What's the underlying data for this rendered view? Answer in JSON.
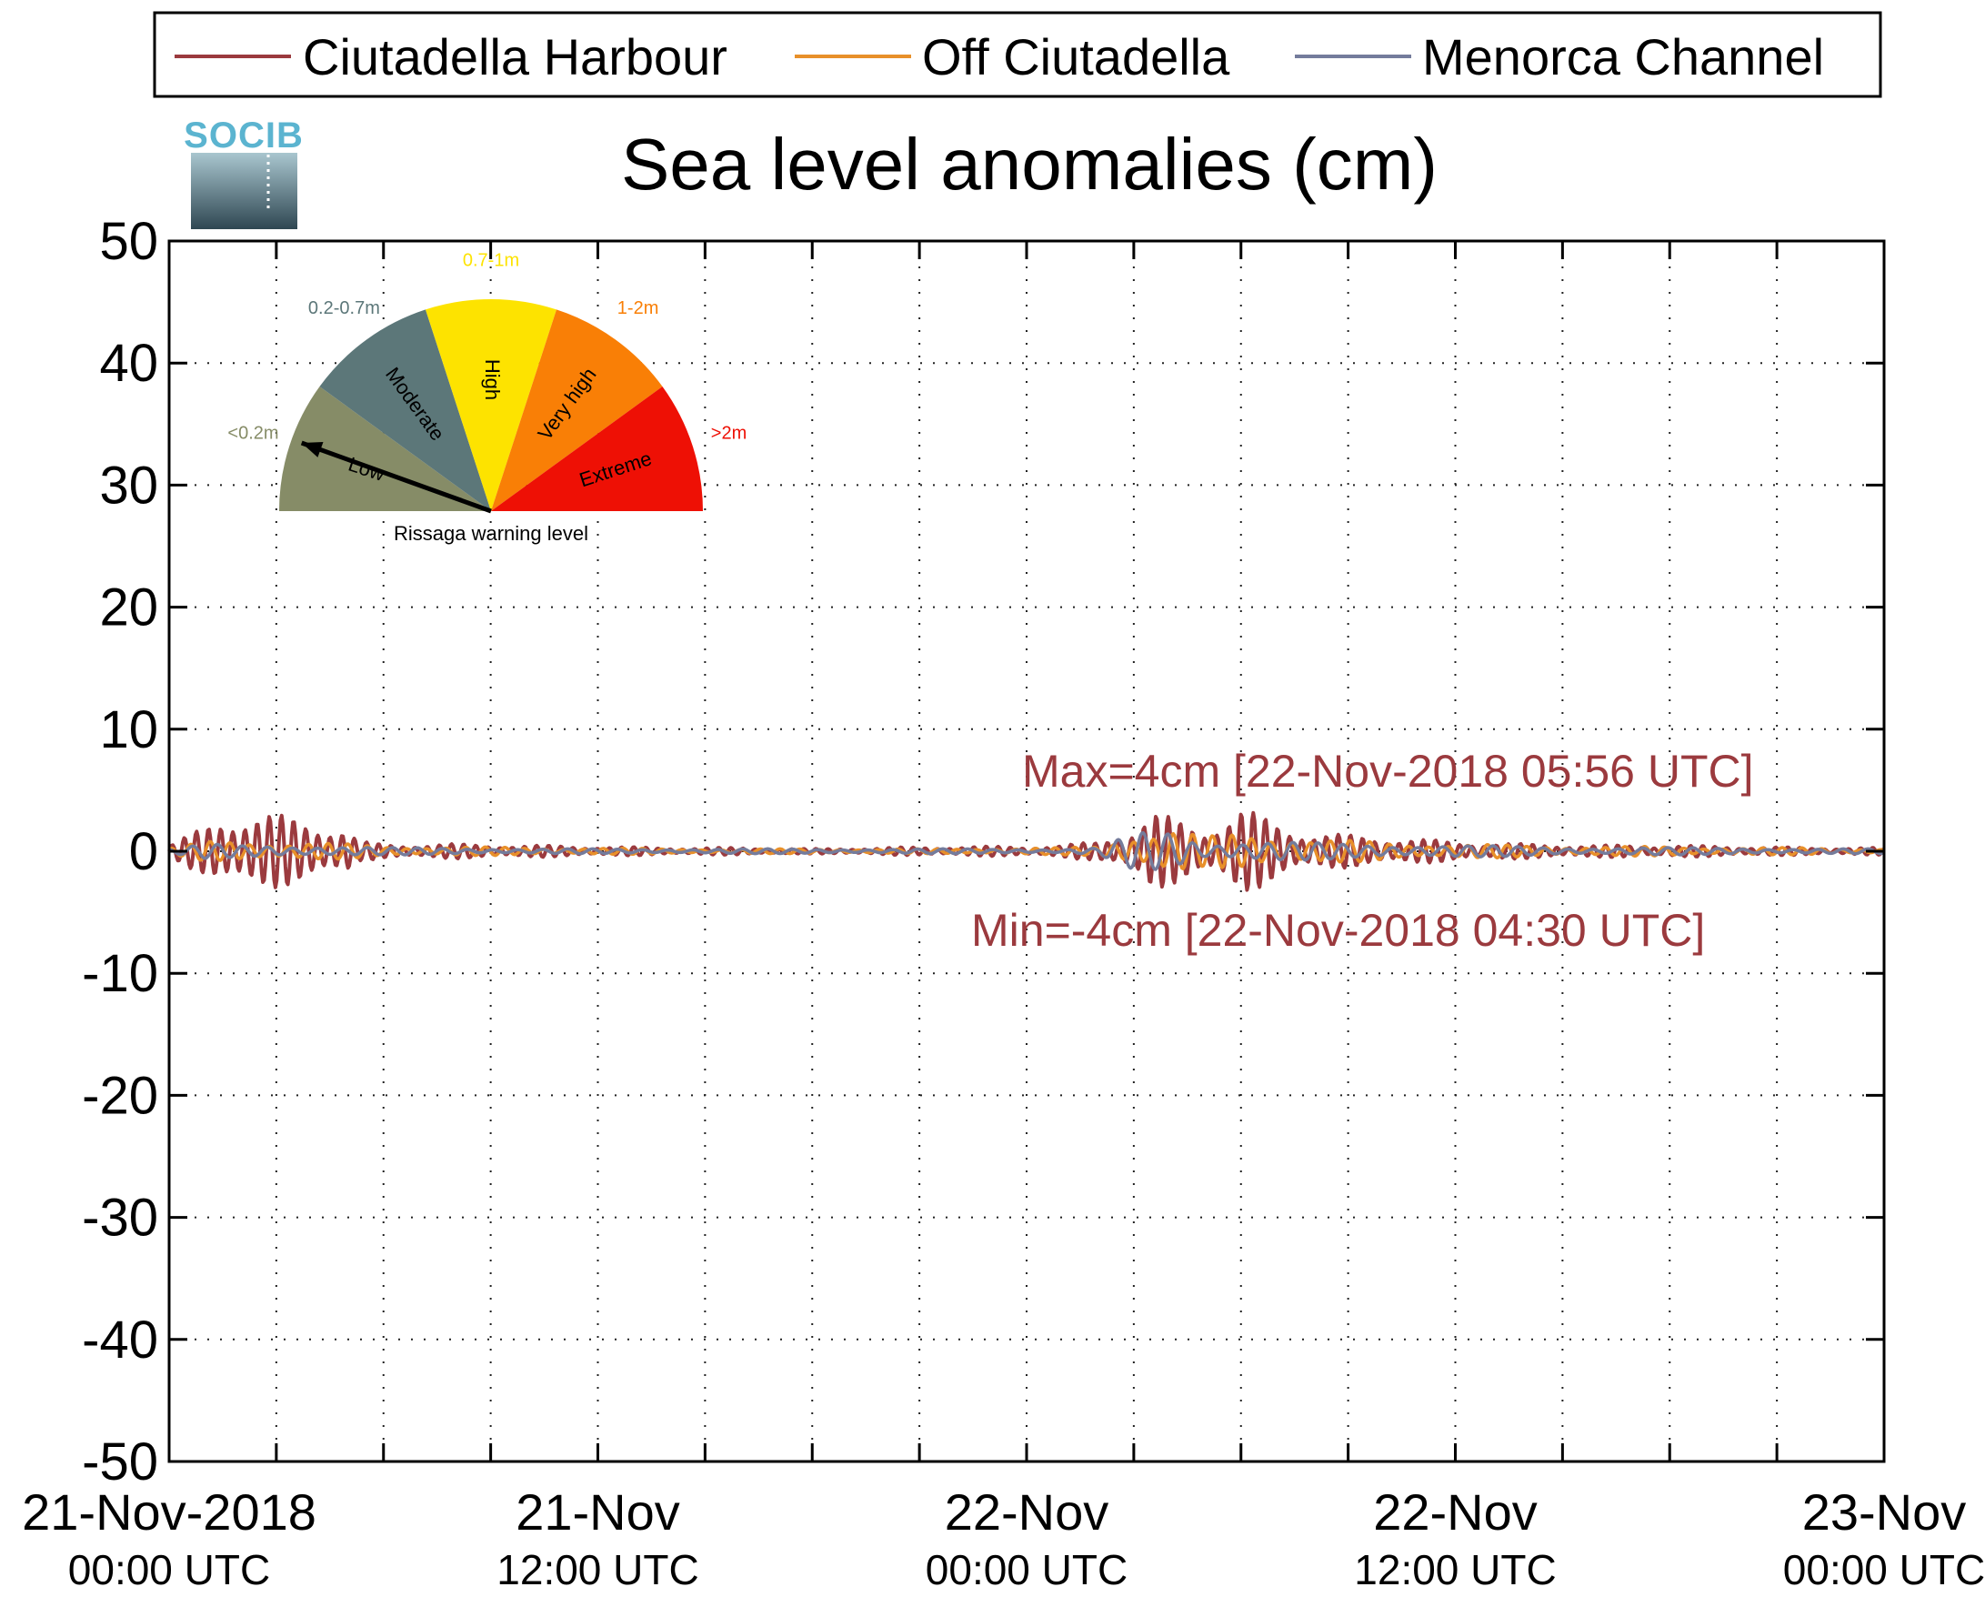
{
  "chart_data": {
    "type": "line",
    "title": "Sea level anomalies (cm)",
    "ylim": [
      -50,
      50
    ],
    "yticks": [
      "50",
      "40",
      "30",
      "20",
      "10",
      "0",
      "-10",
      "-20",
      "-30",
      "-40",
      "-50"
    ],
    "xrange_hours": [
      0,
      48
    ],
    "xticks": [
      {
        "line1": "21-Nov-2018",
        "line2": "00:00 UTC"
      },
      {
        "line1": "21-Nov",
        "line2": "12:00 UTC"
      },
      {
        "line1": "22-Nov",
        "line2": "00:00 UTC"
      },
      {
        "line1": "22-Nov",
        "line2": "12:00 UTC"
      },
      {
        "line1": "23-Nov",
        "line2": "00:00 UTC"
      }
    ],
    "grid": true,
    "legend_position": "top",
    "series": [
      {
        "name": "Ciutadella Harbour",
        "color": "#9b3a3e",
        "envelope": [
          [
            0,
            0.5
          ],
          [
            1,
            2
          ],
          [
            1.5,
            3
          ],
          [
            2,
            3.2
          ],
          [
            3,
            3
          ],
          [
            4,
            2.6
          ],
          [
            5,
            1.8
          ],
          [
            5.3,
            0.8
          ],
          [
            6,
            0.6
          ],
          [
            8,
            0.6
          ],
          [
            10,
            0.5
          ],
          [
            12,
            0.4
          ],
          [
            14,
            0.3
          ],
          [
            16,
            0.3
          ],
          [
            18,
            0.2
          ],
          [
            20,
            0.3
          ],
          [
            22,
            0.4
          ],
          [
            24,
            0.4
          ],
          [
            25,
            0.5
          ],
          [
            26,
            0.8
          ],
          [
            27,
            2
          ],
          [
            27.5,
            3.2
          ],
          [
            28,
            2.8
          ],
          [
            29,
            2
          ],
          [
            30,
            3.5
          ],
          [
            31,
            2.5
          ],
          [
            32,
            1.5
          ],
          [
            34,
            1.2
          ],
          [
            36,
            0.8
          ],
          [
            38,
            0.6
          ],
          [
            40,
            0.5
          ],
          [
            42,
            0.5
          ],
          [
            44,
            0.4
          ],
          [
            46,
            0.3
          ],
          [
            48,
            0.3
          ]
        ]
      },
      {
        "name": "Off Ciutadella",
        "color": "#e8902a",
        "envelope": [
          [
            0,
            0.3
          ],
          [
            1,
            0.8
          ],
          [
            2,
            0.8
          ],
          [
            3,
            0.8
          ],
          [
            4,
            0.8
          ],
          [
            5,
            0.6
          ],
          [
            6,
            0.4
          ],
          [
            8,
            0.4
          ],
          [
            10,
            0.3
          ],
          [
            12,
            0.3
          ],
          [
            14,
            0.2
          ],
          [
            16,
            0.2
          ],
          [
            18,
            0.2
          ],
          [
            20,
            0.2
          ],
          [
            22,
            0.2
          ],
          [
            24,
            0.3
          ],
          [
            25,
            0.3
          ],
          [
            26,
            0.4
          ],
          [
            27,
            1.5
          ],
          [
            28,
            2
          ],
          [
            29,
            1.2
          ],
          [
            30,
            1.6
          ],
          [
            31,
            1.4
          ],
          [
            32,
            1
          ],
          [
            34,
            0.8
          ],
          [
            36,
            0.6
          ],
          [
            38,
            0.5
          ],
          [
            40,
            0.4
          ],
          [
            42,
            0.4
          ],
          [
            44,
            0.3
          ],
          [
            46,
            0.3
          ],
          [
            48,
            0.2
          ]
        ]
      },
      {
        "name": "Menorca Channel",
        "color": "#747c9c",
        "envelope": [
          [
            0,
            0.2
          ],
          [
            1,
            0.6
          ],
          [
            2,
            0.5
          ],
          [
            3,
            0.5
          ],
          [
            4,
            0.5
          ],
          [
            5,
            0.4
          ],
          [
            6,
            0.3
          ],
          [
            8,
            0.3
          ],
          [
            10,
            0.2
          ],
          [
            12,
            0.2
          ],
          [
            14,
            0.2
          ],
          [
            16,
            0.2
          ],
          [
            18,
            0.2
          ],
          [
            20,
            0.2
          ],
          [
            22,
            0.2
          ],
          [
            24,
            0.2
          ],
          [
            25,
            0.2
          ],
          [
            26,
            0.3
          ],
          [
            27,
            1.5
          ],
          [
            28,
            1.8
          ],
          [
            29,
            0.8
          ],
          [
            30,
            0.9
          ],
          [
            31,
            0.8
          ],
          [
            32,
            0.7
          ],
          [
            34,
            0.6
          ],
          [
            36,
            0.5
          ],
          [
            38,
            0.4
          ],
          [
            40,
            0.3
          ],
          [
            42,
            0.3
          ],
          [
            44,
            0.3
          ],
          [
            46,
            0.2
          ],
          [
            48,
            0.2
          ]
        ]
      }
    ],
    "annotations": {
      "max": "Max=4cm [22-Nov-2018 05:56 UTC]",
      "min": "Min=-4cm [22-Nov-2018 04:30 UTC]",
      "color": "#9b3a3e"
    }
  },
  "logo": {
    "text": "SOCIB",
    "color": "#5bb4d0"
  },
  "gauge": {
    "caption": "Rissaga warning level",
    "needle_level": "Low",
    "sectors": [
      {
        "name": "Low",
        "range": "<0.2m",
        "color": "#868c67"
      },
      {
        "name": "Moderate",
        "range": "0.2-0.7m",
        "color": "#5c7779"
      },
      {
        "name": "High",
        "range": "0.7-1m",
        "color": "#fde300"
      },
      {
        "name": "Very high",
        "range": "1-2m",
        "color": "#f97f06"
      },
      {
        "name": "Extreme",
        "range": ">2m",
        "color": "#ee1005"
      }
    ]
  }
}
